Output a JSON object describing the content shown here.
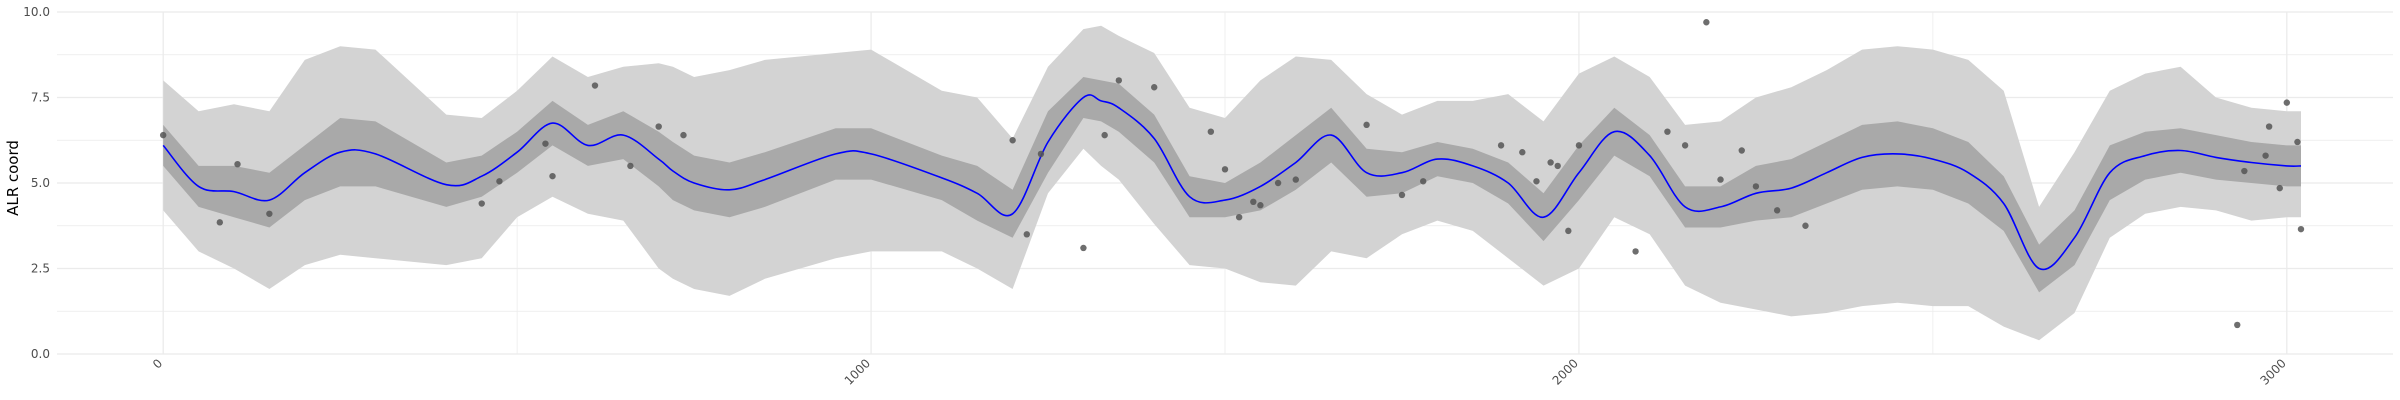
{
  "chart_data": {
    "type": "line",
    "title": "",
    "xlabel": "",
    "ylabel": "ALR coord",
    "xlim": [
      -150,
      3150
    ],
    "ylim": [
      0,
      10
    ],
    "x_ticks": [
      0,
      1000,
      2000,
      3000
    ],
    "y_ticks": [
      0.0,
      2.5,
      5.0,
      7.5,
      10.0
    ],
    "x_tick_labels": [
      "0",
      "1000",
      "2000",
      "3000"
    ],
    "y_tick_labels": [
      "0.0",
      "2.5",
      "5.0",
      "7.5",
      "10.0"
    ],
    "grid": true,
    "legend": "none",
    "colors": {
      "mean_line": "#0000ff",
      "inner_band": "#a9a9a9",
      "outer_band": "#d3d3d3",
      "points": "#555555",
      "grid": "#ebebeb"
    },
    "series": [
      {
        "kind": "mean",
        "x": [
          0,
          50,
          100,
          150,
          200,
          250,
          300,
          400,
          450,
          500,
          550,
          600,
          650,
          700,
          720,
          750,
          800,
          850,
          950,
          1000,
          1100,
          1150,
          1200,
          1250,
          1300,
          1325,
          1350,
          1400,
          1450,
          1500,
          1550,
          1600,
          1650,
          1700,
          1750,
          1800,
          1850,
          1900,
          1950,
          2000,
          2050,
          2100,
          2150,
          2200,
          2250,
          2300,
          2350,
          2400,
          2450,
          2500,
          2550,
          2600,
          2650,
          2700,
          2750,
          2800,
          2850,
          2900,
          2950,
          3000,
          3020
        ],
        "y": [
          6.1,
          4.9,
          4.75,
          4.5,
          5.3,
          5.9,
          5.85,
          4.95,
          5.2,
          5.9,
          6.75,
          6.1,
          6.4,
          5.7,
          5.35,
          5.0,
          4.8,
          5.1,
          5.85,
          5.85,
          5.15,
          4.7,
          4.1,
          6.2,
          7.5,
          7.4,
          7.2,
          6.3,
          4.6,
          4.5,
          4.9,
          5.6,
          6.4,
          5.3,
          5.3,
          5.7,
          5.5,
          5.0,
          4.0,
          5.3,
          6.5,
          5.8,
          4.3,
          4.3,
          4.7,
          4.85,
          5.3,
          5.75,
          5.85,
          5.7,
          5.3,
          4.4,
          2.5,
          3.4,
          5.3,
          5.8,
          5.95,
          5.75,
          5.6,
          5.5,
          5.5
        ]
      },
      {
        "kind": "inner_band",
        "x": [
          0,
          50,
          100,
          150,
          200,
          250,
          300,
          400,
          450,
          500,
          550,
          600,
          650,
          700,
          720,
          750,
          800,
          850,
          950,
          1000,
          1100,
          1150,
          1200,
          1250,
          1300,
          1325,
          1350,
          1400,
          1450,
          1500,
          1550,
          1600,
          1650,
          1700,
          1750,
          1800,
          1850,
          1900,
          1950,
          2000,
          2050,
          2100,
          2150,
          2200,
          2250,
          2300,
          2350,
          2400,
          2450,
          2500,
          2550,
          2600,
          2650,
          2700,
          2750,
          2800,
          2850,
          2900,
          2950,
          3000,
          3020
        ],
        "lower": [
          5.5,
          4.3,
          4.0,
          3.7,
          4.5,
          4.9,
          4.9,
          4.3,
          4.6,
          5.3,
          6.1,
          5.5,
          5.7,
          4.9,
          4.5,
          4.2,
          4.0,
          4.3,
          5.1,
          5.1,
          4.5,
          3.9,
          3.4,
          5.3,
          6.9,
          6.8,
          6.5,
          5.6,
          4.0,
          4.0,
          4.2,
          4.8,
          5.6,
          4.6,
          4.7,
          5.2,
          5.0,
          4.4,
          3.3,
          4.5,
          5.8,
          5.2,
          3.7,
          3.7,
          3.9,
          4.0,
          4.4,
          4.8,
          4.9,
          4.8,
          4.4,
          3.6,
          1.8,
          2.6,
          4.5,
          5.1,
          5.3,
          5.1,
          5.0,
          4.9,
          4.9
        ],
        "upper": [
          6.7,
          5.5,
          5.5,
          5.3,
          6.1,
          6.9,
          6.8,
          5.6,
          5.8,
          6.5,
          7.4,
          6.7,
          7.1,
          6.5,
          6.2,
          5.8,
          5.6,
          5.9,
          6.6,
          6.6,
          5.8,
          5.5,
          4.8,
          7.1,
          8.1,
          8.0,
          7.9,
          7.0,
          5.2,
          5.0,
          5.6,
          6.4,
          7.2,
          6.0,
          5.9,
          6.2,
          6.0,
          5.6,
          4.7,
          6.1,
          7.2,
          6.4,
          4.9,
          4.9,
          5.5,
          5.7,
          6.2,
          6.7,
          6.8,
          6.6,
          6.2,
          5.2,
          3.2,
          4.2,
          6.1,
          6.5,
          6.6,
          6.4,
          6.2,
          6.1,
          6.1
        ]
      },
      {
        "kind": "outer_band",
        "x": [
          0,
          50,
          100,
          150,
          200,
          250,
          300,
          400,
          450,
          500,
          550,
          600,
          650,
          700,
          720,
          750,
          800,
          850,
          950,
          1000,
          1100,
          1150,
          1200,
          1250,
          1300,
          1325,
          1350,
          1400,
          1450,
          1500,
          1550,
          1600,
          1650,
          1700,
          1750,
          1800,
          1850,
          1900,
          1950,
          2000,
          2050,
          2100,
          2150,
          2200,
          2250,
          2300,
          2350,
          2400,
          2450,
          2500,
          2550,
          2600,
          2650,
          2700,
          2750,
          2800,
          2850,
          2900,
          2950,
          3000,
          3020
        ],
        "lower": [
          4.2,
          3.0,
          2.5,
          1.9,
          2.6,
          2.9,
          2.8,
          2.6,
          2.8,
          4.0,
          4.6,
          4.1,
          3.9,
          2.5,
          2.2,
          1.9,
          1.7,
          2.2,
          2.8,
          3.0,
          3.0,
          2.5,
          1.9,
          4.7,
          6.0,
          5.5,
          5.1,
          3.8,
          2.6,
          2.5,
          2.1,
          2.0,
          3.0,
          2.8,
          3.5,
          3.9,
          3.6,
          2.8,
          2.0,
          2.5,
          4.0,
          3.5,
          2.0,
          1.5,
          1.3,
          1.1,
          1.2,
          1.4,
          1.5,
          1.4,
          1.4,
          0.8,
          0.4,
          1.2,
          3.4,
          4.1,
          4.3,
          4.2,
          3.9,
          4.0,
          4.0
        ],
        "upper": [
          8.0,
          7.1,
          7.3,
          7.1,
          8.6,
          9.0,
          8.9,
          7.0,
          6.9,
          7.7,
          8.7,
          8.1,
          8.4,
          8.5,
          8.4,
          8.1,
          8.3,
          8.6,
          8.8,
          8.9,
          7.7,
          7.5,
          6.3,
          8.4,
          9.5,
          9.6,
          9.3,
          8.8,
          7.2,
          6.9,
          8.0,
          8.7,
          8.6,
          7.6,
          7.0,
          7.4,
          7.4,
          7.6,
          6.8,
          8.2,
          8.7,
          8.1,
          6.7,
          6.8,
          7.5,
          7.8,
          8.3,
          8.9,
          9.0,
          8.9,
          8.6,
          7.7,
          4.3,
          5.9,
          7.7,
          8.2,
          8.4,
          7.5,
          7.2,
          7.1,
          7.1
        ]
      },
      {
        "kind": "points",
        "x": [
          0,
          80,
          105,
          150,
          450,
          475,
          540,
          550,
          610,
          660,
          700,
          735,
          1200,
          1220,
          1240,
          1300,
          1330,
          1350,
          1400,
          1480,
          1500,
          1520,
          1540,
          1550,
          1575,
          1600,
          1700,
          1750,
          1780,
          1890,
          1920,
          1940,
          1960,
          1970,
          1985,
          2000,
          2080,
          2125,
          2150,
          2180,
          2200,
          2230,
          2250,
          2280,
          2320,
          2930,
          2940,
          2970,
          2975,
          2990,
          3000,
          3015,
          3020
        ],
        "y": [
          6.4,
          3.85,
          5.55,
          4.1,
          4.4,
          5.05,
          6.15,
          5.2,
          7.85,
          5.5,
          6.65,
          6.4,
          6.25,
          3.5,
          5.85,
          3.1,
          6.4,
          8.0,
          7.8,
          6.5,
          5.4,
          4.0,
          4.45,
          4.35,
          5.0,
          5.1,
          6.7,
          4.65,
          5.05,
          6.1,
          5.9,
          5.05,
          5.6,
          5.5,
          3.6,
          6.1,
          3.0,
          6.5,
          6.1,
          9.7,
          5.1,
          5.95,
          4.9,
          4.2,
          3.75,
          0.85,
          5.35,
          5.8,
          6.65,
          4.85,
          7.35,
          6.2,
          3.65
        ]
      }
    ]
  }
}
